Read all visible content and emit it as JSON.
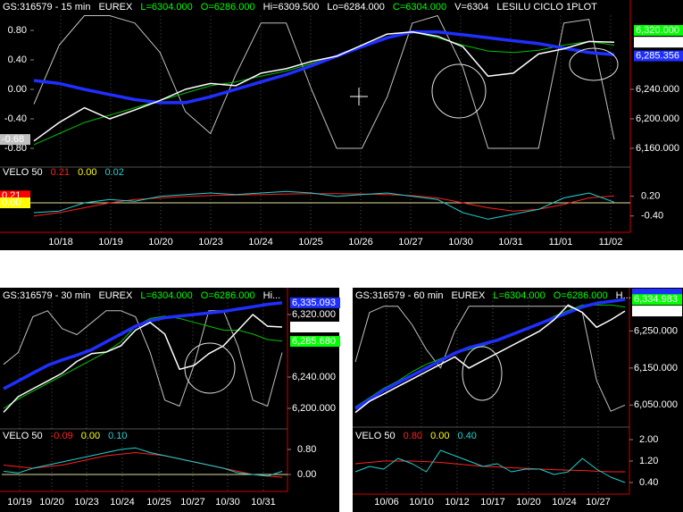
{
  "windows": [
    {
      "header": [
        {
          "text": "GS:316579 - 15 min",
          "color": "#ffffff"
        },
        {
          "text": "EUREX",
          "color": "#ffffff"
        },
        {
          "text": "L=6304.000",
          "color": "#00ff00"
        },
        {
          "text": "O=6286.000",
          "color": "#00ff00"
        },
        {
          "text": "Hi=6309.500",
          "color": "#ffffff"
        },
        {
          "text": "Lo=6284.000",
          "color": "#ffffff"
        },
        {
          "text": "C=6304.000",
          "color": "#00ff00"
        },
        {
          "text": "V=6304",
          "color": "#ffffff"
        },
        {
          "text": "LESILU CICLO 1PLOT",
          "color": "#ffffff"
        }
      ],
      "price": {
        "ylim": [
          6140,
          6340
        ],
        "yticks": [
          {
            "value": 6240,
            "label": "6,240.000"
          },
          {
            "value": 6200,
            "label": "6,200.000"
          },
          {
            "value": 6160,
            "label": "6,160.000"
          }
        ],
        "markers": [
          {
            "value": 6320,
            "label": "6,320.000",
            "color": "#00ff00",
            "text_color": "#000000"
          },
          {
            "value": 6304,
            "label": "6,304.000",
            "color": "#ffffff",
            "text_color": "#000000"
          },
          {
            "value": 6285.356,
            "label": "6,285.356",
            "color": "#1f2fff",
            "text_color": "#8080a0"
          }
        ],
        "series": [
          {
            "color": "#00c000",
            "width": 1,
            "values": [
              6165,
              6180,
              6195,
              6205,
              6215,
              6225,
              6235,
              6245,
              6250,
              6258,
              6265,
              6275,
              6285,
              6300,
              6315,
              6318,
              6310,
              6300,
              6292,
              6290,
              6293,
              6300,
              6305,
              6300
            ]
          },
          {
            "color": "#1f2fff",
            "width": 3.5,
            "values": [
              6252,
              6248,
              6240,
              6233,
              6226,
              6222,
              6222,
              6230,
              6240,
              6250,
              6260,
              6272,
              6285,
              6298,
              6310,
              6318,
              6318,
              6314,
              6310,
              6306,
              6302,
              6296,
              6290,
              6287
            ]
          },
          {
            "color": "#ffffff",
            "width": 1.5,
            "values": [
              6170,
              6195,
              6215,
              6200,
              6212,
              6225,
              6240,
              6248,
              6245,
              6262,
              6268,
              6278,
              6285,
              6300,
              6315,
              6318,
              6312,
              6298,
              6258,
              6262,
              6288,
              6295,
              6305,
              6304
            ]
          }
        ]
      },
      "osc": {
        "ylim": [
          -1.0,
          1.0
        ],
        "color": "#c0c0c0",
        "yticks": [
          {
            "value": 0.8,
            "label": "0.80"
          },
          {
            "value": 0.4,
            "label": "0.40"
          },
          {
            "value": 0,
            "label": "0.00"
          },
          {
            "value": -0.4,
            "label": "-0.40"
          },
          {
            "value": -0.8,
            "label": "-0.80"
          }
        ],
        "markers": [
          {
            "value": -0.68,
            "label": "-0.68",
            "color": "#c0c0c0",
            "text_color": "#000000"
          }
        ],
        "values": [
          -0.2,
          0.6,
          1.0,
          1.0,
          0.9,
          0.5,
          -0.3,
          -0.6,
          0.2,
          0.9,
          0.9,
          0.0,
          -0.8,
          -0.8,
          -0.1,
          0.9,
          1.0,
          0.3,
          -0.8,
          -0.8,
          -0.8,
          0.9,
          0.95,
          -0.68
        ]
      },
      "velo": {
        "label": "VELO 50",
        "readings": [
          {
            "text": "0.21",
            "color": "#ff2020"
          },
          {
            "text": "0.00",
            "color": "#ffff00"
          },
          {
            "text": "0.02",
            "color": "#20d0d0"
          }
        ],
        "ylim": [
          -0.6,
          0.6
        ],
        "yticks": [
          {
            "value": 0.2,
            "label": "0.20"
          },
          {
            "value": -0.4,
            "label": "-0.40"
          }
        ],
        "markers": [
          {
            "value": 0.21,
            "label": "0.21",
            "color": "#ff0000",
            "text_color": "#000000"
          },
          {
            "value": 0,
            "label": "0.00",
            "color": "#ffff00",
            "text_color": "#000000"
          }
        ],
        "series": [
          {
            "color": "#ff2020",
            "width": 1,
            "values": [
              -0.4,
              -0.3,
              -0.15,
              0.0,
              0.1,
              0.15,
              0.2,
              0.22,
              0.24,
              0.25,
              0.27,
              0.28,
              0.28,
              0.27,
              0.25,
              0.22,
              0.15,
              0.0,
              -0.15,
              -0.25,
              -0.2,
              -0.05,
              0.15,
              0.21
            ]
          },
          {
            "color": "#20d0d0",
            "width": 1,
            "values": [
              -0.3,
              -0.25,
              0.0,
              0.1,
              0.05,
              0.2,
              0.25,
              0.3,
              0.25,
              0.3,
              0.35,
              0.3,
              0.2,
              0.25,
              0.3,
              0.2,
              0.1,
              -0.3,
              -0.5,
              -0.35,
              -0.2,
              0.15,
              0.3,
              0.02
            ]
          }
        ]
      },
      "x_labels": [
        "10/18",
        "10/19",
        "10/20",
        "10/23",
        "10/24",
        "10/25",
        "10/26",
        "10/27",
        "10/30",
        "10/31",
        "11/01",
        "11/02"
      ]
    },
    {
      "header": [
        {
          "text": "GS:316579 - 30 min",
          "color": "#ffffff"
        },
        {
          "text": "EUREX",
          "color": "#ffffff"
        },
        {
          "text": "L=6304.000",
          "color": "#00ff00"
        },
        {
          "text": "O=6286.000",
          "color": "#00ff00"
        },
        {
          "text": "Hi...",
          "color": "#ffffff"
        }
      ],
      "price": {
        "ylim": [
          6180,
          6340
        ],
        "yticks": [
          {
            "value": 6320,
            "label": "6,320.000"
          },
          {
            "value": 6240,
            "label": "6,240.000"
          },
          {
            "value": 6200,
            "label": "6,200.000"
          }
        ],
        "markers": [
          {
            "value": 6335,
            "label": "6,335.093",
            "color": "#1f2fff",
            "text_color": "#8080a0"
          },
          {
            "value": 6304,
            "label": "6,304.000",
            "color": "#ffffff",
            "text_color": "#000000"
          },
          {
            "value": 6285.68,
            "label": "6,285.680",
            "color": "#00ff00",
            "text_color": "#000000"
          }
        ],
        "series": [
          {
            "color": "#00c000",
            "width": 1,
            "values": [
              6200,
              6212,
              6222,
              6232,
              6242,
              6252,
              6262,
              6272,
              6285,
              6305,
              6315,
              6318,
              6315,
              6310,
              6305,
              6300,
              6300,
              6295,
              6288,
              6286
            ]
          },
          {
            "color": "#1f2fff",
            "width": 3.5,
            "values": [
              6225,
              6235,
              6245,
              6255,
              6262,
              6268,
              6275,
              6285,
              6295,
              6305,
              6312,
              6316,
              6318,
              6320,
              6322,
              6324,
              6327,
              6330,
              6333,
              6335
            ]
          },
          {
            "color": "#ffffff",
            "width": 1.5,
            "values": [
              6195,
              6215,
              6225,
              6235,
              6245,
              6260,
              6270,
              6272,
              6280,
              6300,
              6310,
              6295,
              6250,
              6255,
              6270,
              6280,
              6300,
              6320,
              6305,
              6304
            ]
          }
        ]
      },
      "osc": {
        "ylim": [
          -1.0,
          1.1
        ],
        "color": "#c0c0c0",
        "values": [
          0.0,
          0.2,
          0.8,
          0.9,
          0.6,
          0.5,
          0.7,
          0.9,
          0.9,
          0.8,
          0.2,
          -0.6,
          -0.7,
          0.0,
          0.9,
          0.9,
          0.3,
          -0.6,
          -0.7,
          0.2
        ]
      },
      "velo": {
        "label": "VELO 50",
        "readings": [
          {
            "text": "-0.09",
            "color": "#ff2020"
          },
          {
            "text": "0.00",
            "color": "#ffff00"
          },
          {
            "text": "0.10",
            "color": "#20d0d0"
          }
        ],
        "ylim": [
          -0.4,
          1.2
        ],
        "yticks": [
          {
            "value": 0.8,
            "label": "0.80"
          },
          {
            "value": 0,
            "label": "0.00"
          }
        ],
        "series": [
          {
            "color": "#ff2020",
            "width": 1,
            "values": [
              0.3,
              0.25,
              0.2,
              0.25,
              0.3,
              0.4,
              0.5,
              0.6,
              0.65,
              0.7,
              0.65,
              0.6,
              0.5,
              0.4,
              0.3,
              0.2,
              0.1,
              0.0,
              -0.05,
              -0.09
            ]
          },
          {
            "color": "#20d0d0",
            "width": 1,
            "values": [
              0.1,
              0.05,
              0.2,
              0.3,
              0.4,
              0.5,
              0.6,
              0.7,
              0.8,
              0.85,
              0.7,
              0.6,
              0.5,
              0.4,
              0.3,
              0.2,
              0.05,
              0.0,
              -0.05,
              0.1
            ]
          }
        ]
      },
      "x_labels": [
        "10/19",
        "10/20",
        "10/23",
        "10/24",
        "10/25",
        "10/27",
        "10/30",
        "10/31"
      ]
    },
    {
      "header": [
        {
          "text": "GS:316579 - 60 min",
          "color": "#ffffff"
        },
        {
          "text": "EUREX",
          "color": "#ffffff"
        },
        {
          "text": "L=6304.000",
          "color": "#00ff00"
        },
        {
          "text": "O=6286.000",
          "color": "#00ff00"
        },
        {
          "text": "H...",
          "color": "#ffffff"
        }
      ],
      "price": {
        "ylim": [
          6000,
          6350
        ],
        "yticks": [
          {
            "value": 6250,
            "label": "6,250.000"
          },
          {
            "value": 6150,
            "label": "6,150.000"
          },
          {
            "value": 6050,
            "label": "6,050.000"
          }
        ],
        "markers": [
          {
            "value": 6350,
            "color": "#1f2fff"
          },
          {
            "value": 6334.983,
            "label": "6,334.983",
            "color": "#00ff00",
            "text_color": "#000000"
          },
          {
            "value": 6304,
            "label": "6,304.000",
            "color": "#ffffff",
            "text_color": "#000000"
          }
        ],
        "series": [
          {
            "color": "#00c000",
            "width": 1,
            "values": [
              6045,
              6070,
              6095,
              6115,
              6140,
              6160,
              6175,
              6190,
              6200,
              6210,
              6225,
              6240,
              6255,
              6270,
              6290,
              6305,
              6320,
              6320,
              6320,
              6315
            ]
          },
          {
            "color": "#1f2fff",
            "width": 3.5,
            "values": [
              6040,
              6065,
              6090,
              6110,
              6130,
              6150,
              6170,
              6190,
              6205,
              6215,
              6225,
              6240,
              6255,
              6270,
              6285,
              6300,
              6315,
              6325,
              6330,
              6335
            ]
          },
          {
            "color": "#ffffff",
            "width": 1.5,
            "values": [
              6030,
              6060,
              6080,
              6100,
              6120,
              6140,
              6160,
              6180,
              6150,
              6170,
              6190,
              6210,
              6230,
              6250,
              6280,
              6320,
              6300,
              6260,
              6280,
              6304
            ]
          }
        ]
      },
      "osc": {
        "ylim": [
          -1.0,
          1.1
        ],
        "color": "#c0c0c0",
        "values": [
          0.0,
          0.8,
          0.9,
          0.9,
          0.6,
          0.2,
          -0.1,
          0.5,
          0.9,
          0.9,
          0.9,
          0.9,
          0.9,
          0.9,
          0.9,
          0.9,
          0.8,
          -0.3,
          -0.8,
          -0.7
        ]
      },
      "velo": {
        "label": "VELO 50",
        "readings": [
          {
            "text": "0.80",
            "color": "#ff2020"
          },
          {
            "text": "0.00",
            "color": "#ffff00"
          },
          {
            "text": "0.40",
            "color": "#20d0d0"
          }
        ],
        "ylim": [
          0,
          2.4
        ],
        "yticks": [
          {
            "value": 2.0,
            "label": "2.00"
          },
          {
            "value": 1.2,
            "label": "1.20"
          },
          {
            "value": 0.4,
            "label": "0.40"
          }
        ],
        "series": [
          {
            "color": "#ff2020",
            "width": 1,
            "values": [
              1.1,
              1.15,
              1.2,
              1.2,
              1.2,
              1.18,
              1.15,
              1.1,
              1.05,
              1.0,
              0.98,
              0.95,
              0.93,
              0.9,
              0.88,
              0.86,
              0.85,
              0.82,
              0.8,
              0.8
            ]
          },
          {
            "color": "#20d0d0",
            "width": 1,
            "values": [
              0.8,
              1.0,
              0.9,
              1.3,
              1.1,
              0.8,
              1.6,
              1.4,
              1.2,
              1.0,
              1.1,
              0.8,
              0.9,
              0.9,
              0.7,
              0.8,
              1.3,
              0.9,
              0.6,
              0.4
            ]
          }
        ]
      },
      "x_labels": [
        "10/06",
        "10/10",
        "10/12",
        "10/17",
        "10/20",
        "10/24",
        "10/27"
      ]
    }
  ]
}
